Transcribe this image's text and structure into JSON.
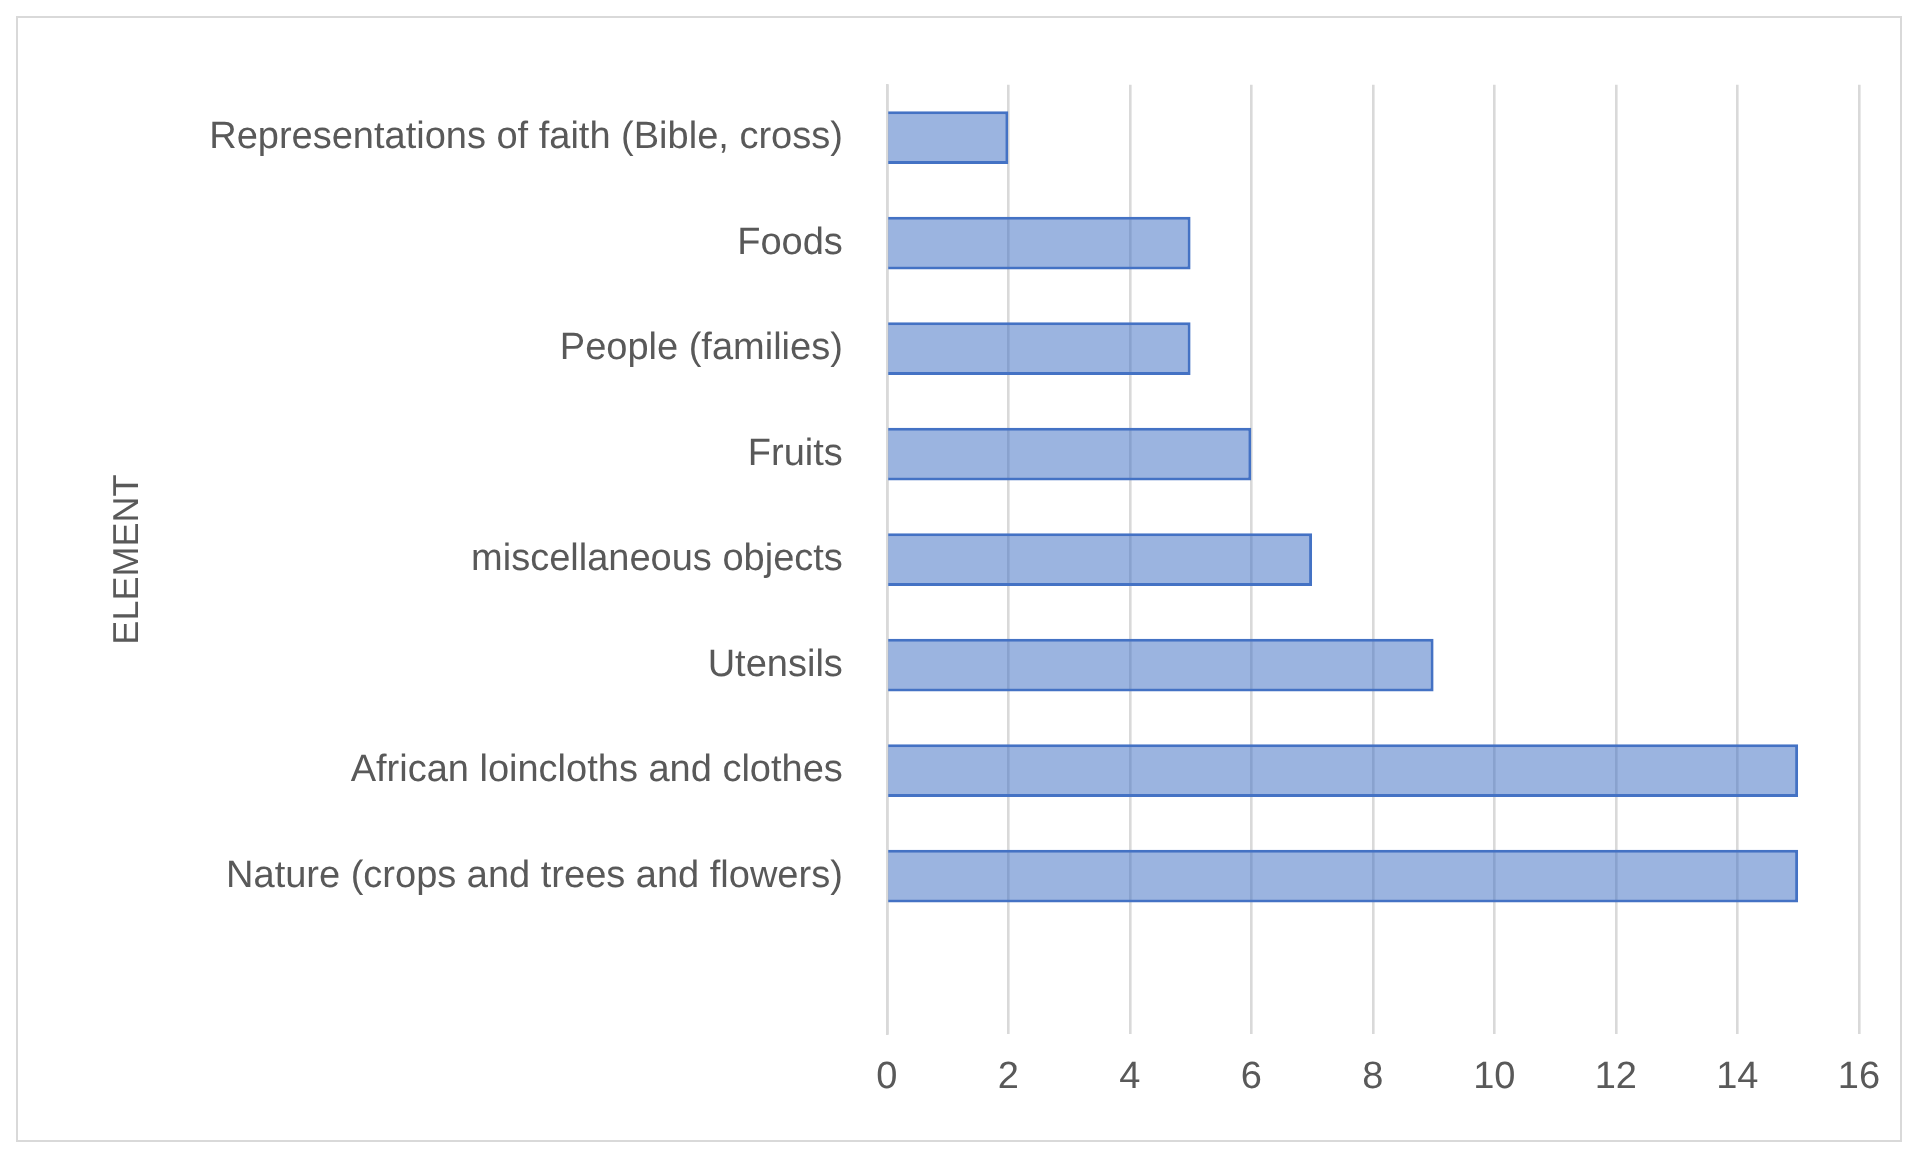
{
  "chart_data": {
    "type": "bar",
    "orientation": "horizontal",
    "ylabel": "ELEMENT",
    "categories": [
      "Representations of faith (Bible, cross)",
      "Foods",
      "People (families)",
      "Fruits",
      "miscellaneous objects",
      "Utensils",
      "African loincloths and clothes",
      "Nature (crops and trees and flowers)",
      null
    ],
    "values": [
      2,
      5,
      5,
      6,
      7,
      9,
      15,
      15,
      null
    ],
    "color": "#4472c4",
    "xlim": [
      0,
      16
    ],
    "xticks": [
      0,
      2,
      4,
      6,
      8,
      10,
      12,
      14,
      16
    ],
    "grid": "x",
    "legend": false
  }
}
